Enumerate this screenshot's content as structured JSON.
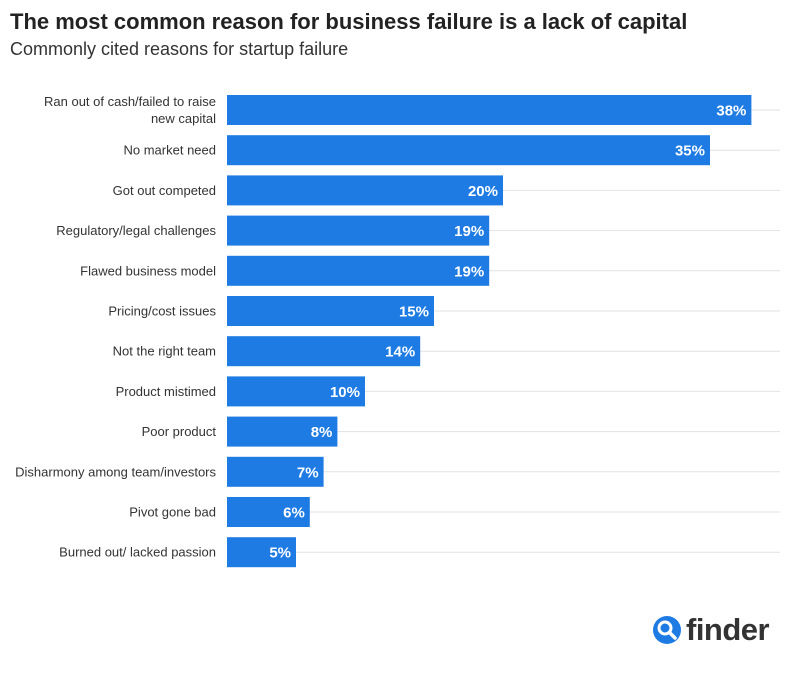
{
  "chart_data": {
    "type": "bar",
    "orientation": "horizontal",
    "title": "The most common reason for business failure is a lack of capital",
    "subtitle": "Commonly cited reasons for startup failure",
    "categories": [
      "Ran out of cash/failed to raise new capital",
      "No market need",
      "Got out competed",
      "Regulatory/legal challenges",
      "Flawed business model",
      "Pricing/cost issues",
      "Not the right team",
      "Product mistimed",
      "Poor product",
      "Disharmony among team/investors",
      "Pivot gone bad",
      "Burned out/ lacked passion"
    ],
    "values": [
      38,
      35,
      20,
      19,
      19,
      15,
      14,
      10,
      8,
      7,
      6,
      5
    ],
    "value_labels": [
      "38%",
      "35%",
      "20%",
      "19%",
      "19%",
      "15%",
      "14%",
      "10%",
      "8%",
      "7%",
      "6%",
      "5%"
    ],
    "xlim": [
      0,
      40
    ],
    "grid": true,
    "bar_color": "#1e7be3",
    "label_color": "#ffffff"
  },
  "brand": {
    "name": "finder",
    "icon": "magnifier-icon",
    "color": "#1e7be3"
  }
}
